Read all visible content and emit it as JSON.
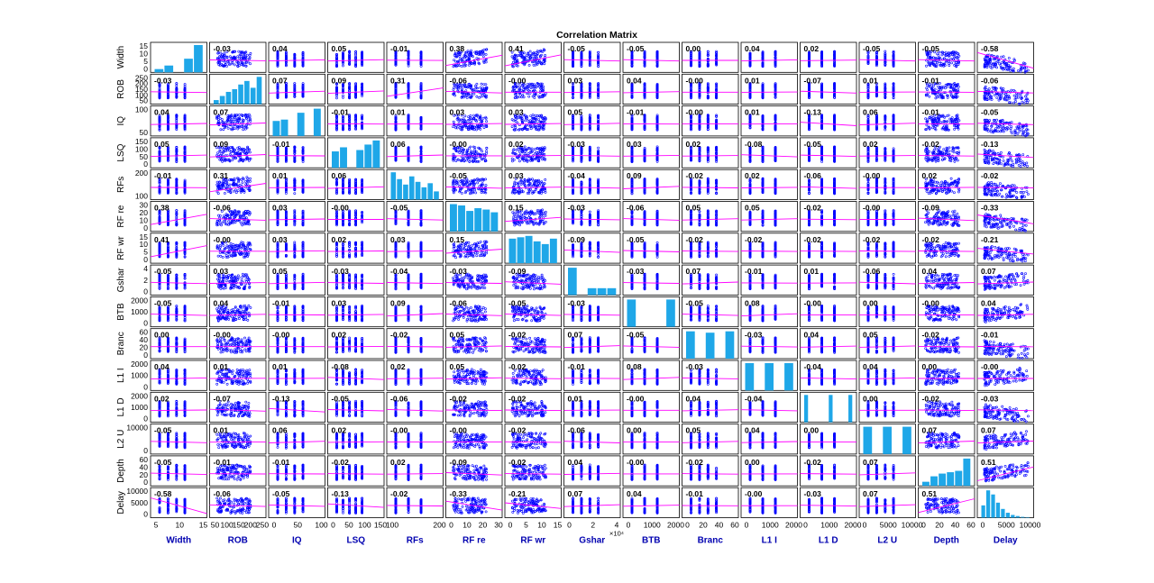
{
  "chart_data": {
    "type": "scatter",
    "subtype": "correlation-matrix",
    "title": "Correlation Matrix",
    "variables": [
      "Width",
      "ROB",
      "IQ",
      "LSQ",
      "RFs",
      "RF re",
      "RF wr",
      "Gshar",
      "BTB",
      "Branc",
      "L1 I",
      "L1 D",
      "L2 U",
      "Depth",
      "Delay"
    ],
    "x_ticks": [
      [
        "5",
        "10",
        "15"
      ],
      [
        "50",
        "100",
        "150",
        "200",
        "250"
      ],
      [
        "0",
        "50",
        "100"
      ],
      [
        "0",
        "50",
        "100",
        "150"
      ],
      [
        "100",
        "200"
      ],
      [
        "0",
        "10",
        "20",
        "30"
      ],
      [
        "0",
        "5",
        "10",
        "15"
      ],
      [
        "0",
        "2",
        "4"
      ],
      [
        "0",
        "1000",
        "2000"
      ],
      [
        "0",
        "20",
        "40",
        "60"
      ],
      [
        "0",
        "1000",
        "2000"
      ],
      [
        "0",
        "1000",
        "2000"
      ],
      [
        "0",
        "5000",
        "10000"
      ],
      [
        "0",
        "20",
        "40",
        "60"
      ],
      [
        "0",
        "5000",
        "10000"
      ]
    ],
    "x_exponent_labels": [
      "",
      "",
      "",
      "",
      "",
      "",
      "",
      "×10⁴",
      "",
      "",
      "",
      "",
      "",
      "",
      ""
    ],
    "y_ticks": [
      [
        "0",
        "5",
        "10",
        "15"
      ],
      [
        "50",
        "100",
        "150",
        "200",
        "250"
      ],
      [
        "50",
        "100"
      ],
      [
        "0",
        "50",
        "100",
        "150"
      ],
      [
        "100",
        "200"
      ],
      [
        "0",
        "10",
        "20",
        "30"
      ],
      [
        "0",
        "5",
        "10",
        "15"
      ],
      [
        "0",
        "2",
        "4"
      ],
      [
        "0",
        "1000",
        "2000"
      ],
      [
        "0",
        "20",
        "40",
        "60"
      ],
      [
        "0",
        "1000",
        "2000"
      ],
      [
        "0",
        "1000",
        "2000"
      ],
      [
        "0",
        "10000"
      ],
      [
        "0",
        "20",
        "40",
        "60"
      ],
      [
        "0",
        "5000",
        "10000"
      ]
    ],
    "correlations": [
      [
        null,
        "-0.03",
        "0.04",
        "0.05",
        "-0.01",
        "0.38",
        "0.41",
        "-0.05",
        "-0.05",
        "0.00",
        "0.04",
        "0.02",
        "-0.05",
        "-0.05",
        "-0.58"
      ],
      [
        "-0.03",
        null,
        "0.07",
        "0.09",
        "0.31",
        "-0.06",
        "-0.00",
        "0.03",
        "0.04",
        "-0.00",
        "0.01",
        "-0.07",
        "0.01",
        "-0.01",
        "-0.06"
      ],
      [
        "0.04",
        "0.07",
        null,
        "-0.01",
        "0.01",
        "0.03",
        "0.03",
        "0.05",
        "-0.01",
        "-0.00",
        "0.01",
        "-0.13",
        "0.06",
        "-0.01",
        "-0.05"
      ],
      [
        "0.05",
        "0.09",
        "-0.01",
        null,
        "0.06",
        "-0.00",
        "0.02",
        "-0.03",
        "0.03",
        "0.02",
        "-0.08",
        "-0.05",
        "0.02",
        "-0.02",
        "-0.13"
      ],
      [
        "-0.01",
        "0.31",
        "0.01",
        "0.06",
        null,
        "-0.05",
        "0.03",
        "-0.04",
        "0.09",
        "-0.02",
        "0.02",
        "-0.06",
        "-0.00",
        "0.02",
        "-0.02"
      ],
      [
        "0.38",
        "-0.06",
        "0.03",
        "-0.00",
        "-0.05",
        null,
        "0.15",
        "-0.03",
        "-0.06",
        "0.05",
        "0.05",
        "-0.02",
        "-0.00",
        "-0.09",
        "-0.33"
      ],
      [
        "0.41",
        "-0.00",
        "0.03",
        "0.02",
        "0.03",
        "0.15",
        null,
        "-0.09",
        "-0.05",
        "-0.02",
        "-0.02",
        "-0.02",
        "-0.02",
        "-0.02",
        "-0.21"
      ],
      [
        "-0.05",
        "0.03",
        "0.05",
        "-0.03",
        "-0.04",
        "-0.03",
        "-0.09",
        null,
        "-0.03",
        "0.07",
        "-0.01",
        "0.01",
        "-0.06",
        "0.04",
        "0.07"
      ],
      [
        "-0.05",
        "0.04",
        "-0.01",
        "0.03",
        "0.09",
        "-0.06",
        "-0.05",
        "-0.03",
        null,
        "-0.05",
        "0.08",
        "-0.00",
        "0.00",
        "-0.00",
        "0.04"
      ],
      [
        "0.00",
        "-0.00",
        "-0.00",
        "0.02",
        "-0.02",
        "0.05",
        "-0.02",
        "0.07",
        "-0.05",
        null,
        "-0.03",
        "0.04",
        "0.05",
        "-0.02",
        "-0.01"
      ],
      [
        "0.04",
        "0.01",
        "0.01",
        "-0.08",
        "0.02",
        "0.05",
        "-0.02",
        "-0.01",
        "0.08",
        "-0.03",
        null,
        "-0.04",
        "0.04",
        "0.00",
        "-0.00"
      ],
      [
        "0.02",
        "-0.07",
        "-0.13",
        "-0.05",
        "-0.06",
        "-0.02",
        "-0.02",
        "0.01",
        "-0.00",
        "0.04",
        "-0.04",
        null,
        "0.00",
        "-0.02",
        "-0.03"
      ],
      [
        "-0.05",
        "0.01",
        "0.06",
        "0.02",
        "-0.00",
        "-0.00",
        "-0.02",
        "-0.06",
        "0.00",
        "0.05",
        "0.04",
        "0.00",
        null,
        "0.07",
        "0.07"
      ],
      [
        "-0.05",
        "-0.01",
        "-0.01",
        "-0.02",
        "0.02",
        "-0.09",
        "-0.02",
        "0.04",
        "-0.00",
        "-0.02",
        "0.00",
        "-0.02",
        "0.07",
        null,
        "0.51"
      ],
      [
        "-0.58",
        "-0.06",
        "-0.05",
        "-0.13",
        "-0.02",
        "-0.33",
        "-0.21",
        "0.07",
        "0.04",
        "-0.01",
        "-0.00",
        "-0.03",
        "0.07",
        "0.51",
        null
      ]
    ],
    "histograms": [
      [
        0.12,
        0.25,
        0.0,
        0.5,
        1.0
      ],
      [
        0.15,
        0.3,
        0.45,
        0.55,
        0.72,
        0.85,
        0.6,
        1.0
      ],
      [
        0.55,
        0.6,
        0.0,
        0.85,
        0.0,
        1.0
      ],
      [
        0.6,
        0.75,
        0.0,
        0.65,
        0.85,
        1.0
      ],
      [
        1.0,
        0.75,
        0.55,
        0.85,
        0.65,
        0.45,
        0.6,
        0.3
      ],
      [
        1.0,
        0.95,
        0.75,
        0.85,
        0.8,
        0.7
      ],
      [
        0.9,
        0.95,
        1.0,
        0.8,
        0.7,
        0.9
      ],
      [
        1.0,
        0.0,
        0.25,
        0.25,
        0.25
      ],
      [
        1.0,
        0.0,
        0.0,
        0.0,
        1.0
      ],
      [
        1.0,
        0.0,
        0.95,
        0.0,
        1.0
      ],
      [
        1.0,
        0.0,
        1.0,
        0.0,
        1.0
      ],
      [
        1.0,
        0.0,
        0.0,
        0.0,
        0.0,
        1.0,
        0.0,
        0.0,
        0.0,
        1.0
      ],
      [
        1.0,
        0.0,
        1.0,
        0.0,
        1.0
      ],
      [
        0.15,
        0.35,
        0.45,
        0.5,
        0.55,
        1.0
      ],
      [
        0.45,
        1.0,
        0.85,
        0.55,
        0.32,
        0.18,
        0.1,
        0.06,
        0.03,
        0.02
      ]
    ],
    "grid": false,
    "marker_color": "#0000ff",
    "fit_line_color": "#ff00ff",
    "histogram_color": "#1fa7e8",
    "label_color": "#0000b0"
  }
}
